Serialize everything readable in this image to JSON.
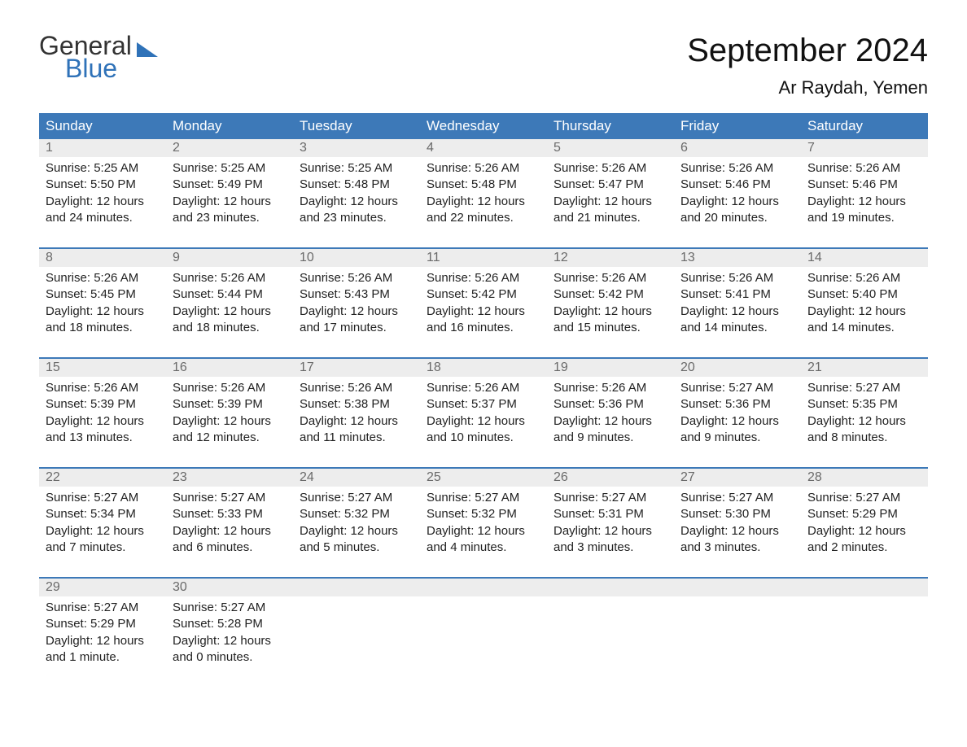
{
  "brand": {
    "word1": "General",
    "word2": "Blue",
    "accent_color": "#2f72b8"
  },
  "title": "September 2024",
  "location": "Ar Raydah, Yemen",
  "colors": {
    "header_bg": "#3d79b8",
    "header_text": "#ffffff",
    "daynum_bg": "#ededed",
    "daynum_text": "#6a6a6a",
    "body_text": "#222222",
    "week_divider": "#3d79b8",
    "page_bg": "#ffffff"
  },
  "day_labels": [
    "Sunday",
    "Monday",
    "Tuesday",
    "Wednesday",
    "Thursday",
    "Friday",
    "Saturday"
  ],
  "weeks": [
    [
      {
        "n": "1",
        "sunrise": "5:25 AM",
        "sunset": "5:50 PM",
        "daylight": "12 hours and 24 minutes."
      },
      {
        "n": "2",
        "sunrise": "5:25 AM",
        "sunset": "5:49 PM",
        "daylight": "12 hours and 23 minutes."
      },
      {
        "n": "3",
        "sunrise": "5:25 AM",
        "sunset": "5:48 PM",
        "daylight": "12 hours and 23 minutes."
      },
      {
        "n": "4",
        "sunrise": "5:26 AM",
        "sunset": "5:48 PM",
        "daylight": "12 hours and 22 minutes."
      },
      {
        "n": "5",
        "sunrise": "5:26 AM",
        "sunset": "5:47 PM",
        "daylight": "12 hours and 21 minutes."
      },
      {
        "n": "6",
        "sunrise": "5:26 AM",
        "sunset": "5:46 PM",
        "daylight": "12 hours and 20 minutes."
      },
      {
        "n": "7",
        "sunrise": "5:26 AM",
        "sunset": "5:46 PM",
        "daylight": "12 hours and 19 minutes."
      }
    ],
    [
      {
        "n": "8",
        "sunrise": "5:26 AM",
        "sunset": "5:45 PM",
        "daylight": "12 hours and 18 minutes."
      },
      {
        "n": "9",
        "sunrise": "5:26 AM",
        "sunset": "5:44 PM",
        "daylight": "12 hours and 18 minutes."
      },
      {
        "n": "10",
        "sunrise": "5:26 AM",
        "sunset": "5:43 PM",
        "daylight": "12 hours and 17 minutes."
      },
      {
        "n": "11",
        "sunrise": "5:26 AM",
        "sunset": "5:42 PM",
        "daylight": "12 hours and 16 minutes."
      },
      {
        "n": "12",
        "sunrise": "5:26 AM",
        "sunset": "5:42 PM",
        "daylight": "12 hours and 15 minutes."
      },
      {
        "n": "13",
        "sunrise": "5:26 AM",
        "sunset": "5:41 PM",
        "daylight": "12 hours and 14 minutes."
      },
      {
        "n": "14",
        "sunrise": "5:26 AM",
        "sunset": "5:40 PM",
        "daylight": "12 hours and 14 minutes."
      }
    ],
    [
      {
        "n": "15",
        "sunrise": "5:26 AM",
        "sunset": "5:39 PM",
        "daylight": "12 hours and 13 minutes."
      },
      {
        "n": "16",
        "sunrise": "5:26 AM",
        "sunset": "5:39 PM",
        "daylight": "12 hours and 12 minutes."
      },
      {
        "n": "17",
        "sunrise": "5:26 AM",
        "sunset": "5:38 PM",
        "daylight": "12 hours and 11 minutes."
      },
      {
        "n": "18",
        "sunrise": "5:26 AM",
        "sunset": "5:37 PM",
        "daylight": "12 hours and 10 minutes."
      },
      {
        "n": "19",
        "sunrise": "5:26 AM",
        "sunset": "5:36 PM",
        "daylight": "12 hours and 9 minutes."
      },
      {
        "n": "20",
        "sunrise": "5:27 AM",
        "sunset": "5:36 PM",
        "daylight": "12 hours and 9 minutes."
      },
      {
        "n": "21",
        "sunrise": "5:27 AM",
        "sunset": "5:35 PM",
        "daylight": "12 hours and 8 minutes."
      }
    ],
    [
      {
        "n": "22",
        "sunrise": "5:27 AM",
        "sunset": "5:34 PM",
        "daylight": "12 hours and 7 minutes."
      },
      {
        "n": "23",
        "sunrise": "5:27 AM",
        "sunset": "5:33 PM",
        "daylight": "12 hours and 6 minutes."
      },
      {
        "n": "24",
        "sunrise": "5:27 AM",
        "sunset": "5:32 PM",
        "daylight": "12 hours and 5 minutes."
      },
      {
        "n": "25",
        "sunrise": "5:27 AM",
        "sunset": "5:32 PM",
        "daylight": "12 hours and 4 minutes."
      },
      {
        "n": "26",
        "sunrise": "5:27 AM",
        "sunset": "5:31 PM",
        "daylight": "12 hours and 3 minutes."
      },
      {
        "n": "27",
        "sunrise": "5:27 AM",
        "sunset": "5:30 PM",
        "daylight": "12 hours and 3 minutes."
      },
      {
        "n": "28",
        "sunrise": "5:27 AM",
        "sunset": "5:29 PM",
        "daylight": "12 hours and 2 minutes."
      }
    ],
    [
      {
        "n": "29",
        "sunrise": "5:27 AM",
        "sunset": "5:29 PM",
        "daylight": "12 hours and 1 minute."
      },
      {
        "n": "30",
        "sunrise": "5:27 AM",
        "sunset": "5:28 PM",
        "daylight": "12 hours and 0 minutes."
      },
      null,
      null,
      null,
      null,
      null
    ]
  ],
  "labels": {
    "sunrise": "Sunrise:",
    "sunset": "Sunset:",
    "daylight": "Daylight:"
  }
}
